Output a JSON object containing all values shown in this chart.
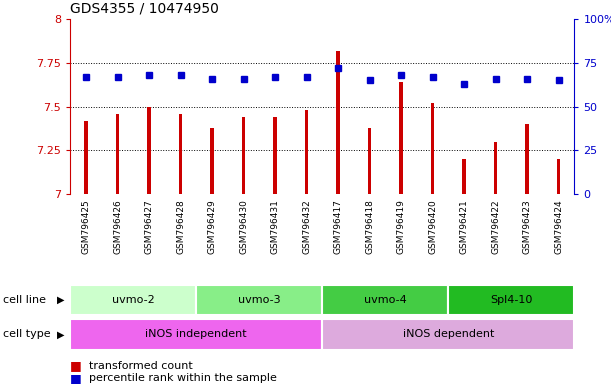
{
  "title": "GDS4355 / 10474950",
  "samples": [
    "GSM796425",
    "GSM796426",
    "GSM796427",
    "GSM796428",
    "GSM796429",
    "GSM796430",
    "GSM796431",
    "GSM796432",
    "GSM796417",
    "GSM796418",
    "GSM796419",
    "GSM796420",
    "GSM796421",
    "GSM796422",
    "GSM796423",
    "GSM796424"
  ],
  "transformed_counts": [
    7.42,
    7.46,
    7.5,
    7.46,
    7.38,
    7.44,
    7.44,
    7.48,
    7.82,
    7.38,
    7.64,
    7.52,
    7.2,
    7.3,
    7.4,
    7.2
  ],
  "percentile_ranks": [
    67,
    67,
    68,
    68,
    66,
    66,
    67,
    67,
    72,
    65,
    68,
    67,
    63,
    66,
    66,
    65
  ],
  "ylim_left": [
    7.0,
    8.0
  ],
  "ylim_right": [
    0,
    100
  ],
  "yticks_left": [
    7.0,
    7.25,
    7.5,
    7.75,
    8.0
  ],
  "yticks_right": [
    0,
    25,
    50,
    75,
    100
  ],
  "ytick_labels_left": [
    "7",
    "7.25",
    "7.5",
    "7.75",
    "8"
  ],
  "ytick_labels_right": [
    "0",
    "25",
    "50",
    "75",
    "100%"
  ],
  "hlines": [
    7.25,
    7.5,
    7.75
  ],
  "bar_color": "#cc0000",
  "dot_color": "#0000cc",
  "cell_lines": [
    {
      "label": "uvmo-2",
      "start": 0,
      "end": 4,
      "color": "#ccffcc"
    },
    {
      "label": "uvmo-3",
      "start": 4,
      "end": 8,
      "color": "#88ee88"
    },
    {
      "label": "uvmo-4",
      "start": 8,
      "end": 12,
      "color": "#44cc44"
    },
    {
      "label": "Spl4-10",
      "start": 12,
      "end": 16,
      "color": "#22bb22"
    }
  ],
  "cell_types": [
    {
      "label": "iNOS independent",
      "start": 0,
      "end": 8,
      "color": "#ee66ee"
    },
    {
      "label": "iNOS dependent",
      "start": 8,
      "end": 16,
      "color": "#ddaadd"
    }
  ],
  "legend_bar_label": "transformed count",
  "legend_dot_label": "percentile rank within the sample",
  "cell_line_label": "cell line",
  "cell_type_label": "cell type",
  "bg_color": "#ffffff",
  "sample_label_bg": "#cccccc",
  "bar_width": 0.12
}
